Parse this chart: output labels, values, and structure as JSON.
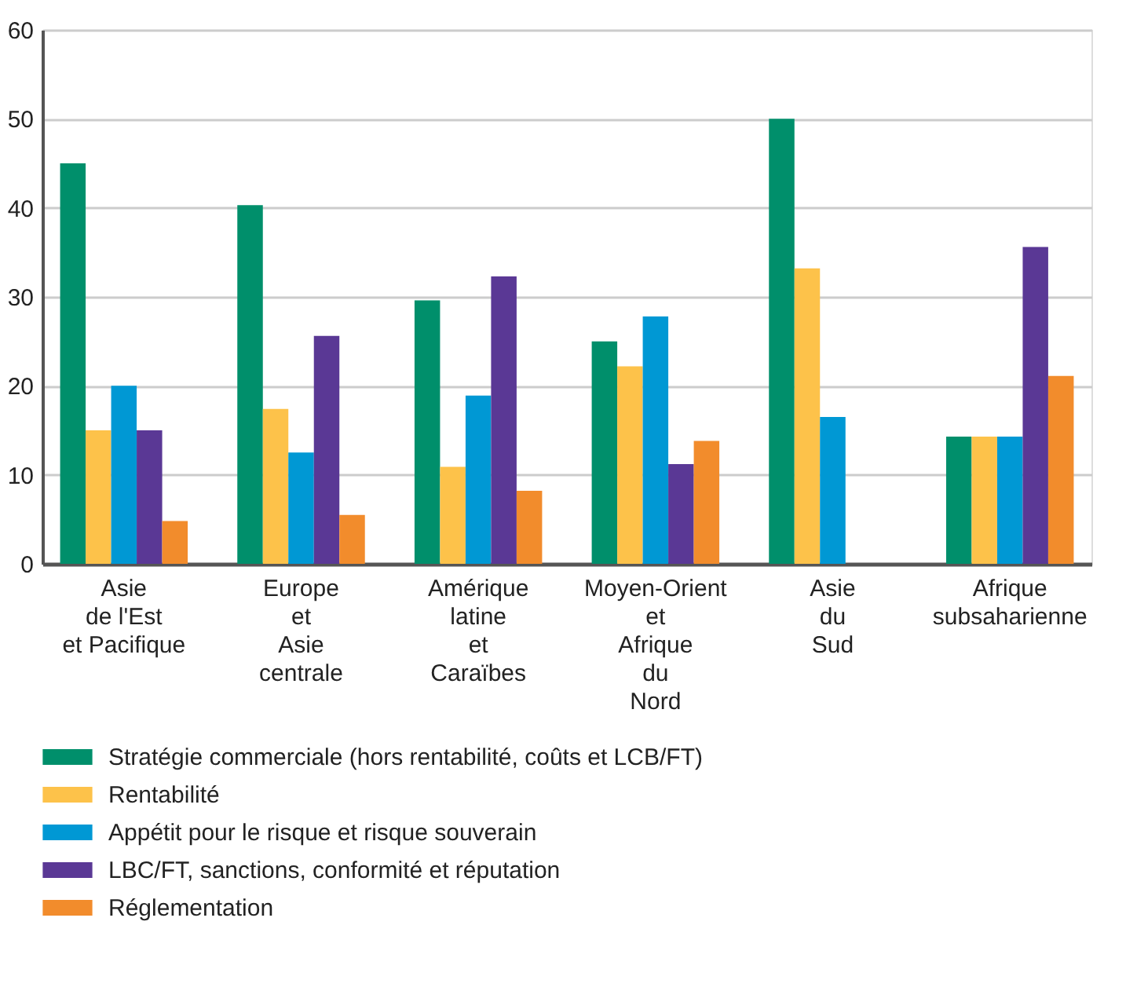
{
  "chart_data": {
    "type": "bar",
    "categories": [
      "Asie\nde l'Est\net Pacifique",
      "Europe\net\nAsie\ncentrale",
      "Amérique\nlatine\net\nCaraïbes",
      "Moyen-Orient\net\nAfrique\ndu\nNord",
      "Asie\ndu\nSud",
      "Afrique\nsubsaharienne"
    ],
    "series": [
      {
        "name": "Stratégie commerciale (hors rentabilité, coûts et LCB/FT)",
        "color": "#008f6b",
        "values": [
          45,
          40.3,
          29.6,
          25,
          50,
          14.3
        ]
      },
      {
        "name": "Rentabilité",
        "color": "#fdc24a",
        "values": [
          15,
          17.4,
          10.9,
          22.2,
          33.2,
          14.3
        ]
      },
      {
        "name": "Appétit pour le risque et risque souverain",
        "color": "#0098d4",
        "values": [
          20,
          12.5,
          18.9,
          27.8,
          16.5,
          14.3
        ]
      },
      {
        "name": "LBC/FT, sanctions, conformité et réputation",
        "color": "#5a3895",
        "values": [
          15,
          25.6,
          32.3,
          11.2,
          null,
          35.6
        ]
      },
      {
        "name": "Réglementation",
        "color": "#f28c2c",
        "values": [
          4.8,
          5.5,
          8.2,
          13.8,
          null,
          21.1
        ]
      }
    ],
    "ylim": [
      0,
      60
    ],
    "yticks": [
      0,
      10,
      20,
      30,
      40,
      50,
      60
    ],
    "grid": "y",
    "legend": "bottom"
  }
}
